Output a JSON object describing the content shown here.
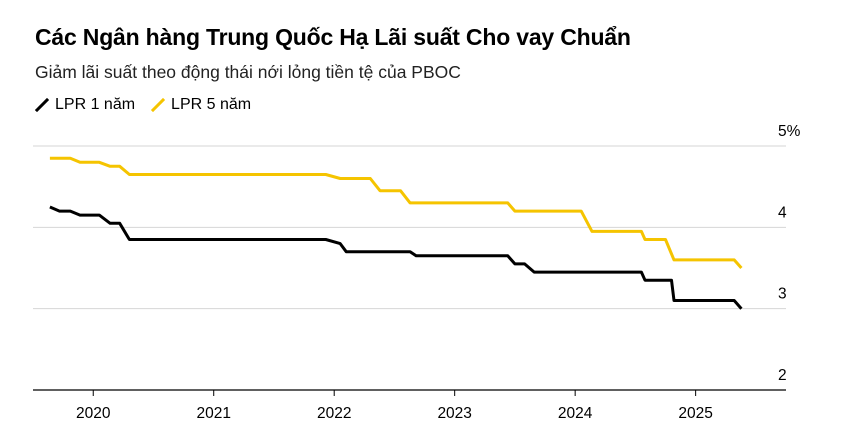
{
  "header": {
    "title": "Các Ngân hàng Trung Quốc Hạ Lãi suất Cho vay Chuẩn",
    "subtitle": "Giảm lãi suất theo động thái nới lỏng tiền tệ của PBOC"
  },
  "legend": {
    "items": [
      {
        "label": "LPR 1 năm",
        "color": "#000000"
      },
      {
        "label": "LPR 5 năm",
        "color": "#f5c400"
      }
    ]
  },
  "chart_data": {
    "type": "line",
    "title": "Các Ngân hàng Trung Quốc Hạ Lãi suất Cho vay Chuẩn",
    "subtitle": "Giảm lãi suất theo động thái nới lỏng tiền tệ của PBOC",
    "xlabel": "",
    "ylabel": "",
    "xlim": [
      2019.5,
      2025.75
    ],
    "ylim": [
      2,
      5
    ],
    "y_ticks": [
      5,
      4,
      3,
      2
    ],
    "y_tick_labels": [
      "5%",
      "4",
      "3",
      "2"
    ],
    "x_ticks": [
      2020,
      2021,
      2022,
      2023,
      2024,
      2025
    ],
    "x_tick_labels": [
      "2020",
      "2021",
      "2022",
      "2023",
      "2024",
      "2025"
    ],
    "series": [
      {
        "name": "LPR 1 năm",
        "color": "#000000",
        "points": [
          [
            2019.64,
            4.25
          ],
          [
            2019.72,
            4.2
          ],
          [
            2019.81,
            4.2
          ],
          [
            2019.89,
            4.15
          ],
          [
            2020.05,
            4.15
          ],
          [
            2020.14,
            4.05
          ],
          [
            2020.22,
            4.05
          ],
          [
            2020.3,
            3.85
          ],
          [
            2021.93,
            3.85
          ],
          [
            2022.05,
            3.8
          ],
          [
            2022.1,
            3.7
          ],
          [
            2022.63,
            3.7
          ],
          [
            2022.68,
            3.65
          ],
          [
            2023.44,
            3.65
          ],
          [
            2023.5,
            3.55
          ],
          [
            2023.58,
            3.55
          ],
          [
            2023.66,
            3.45
          ],
          [
            2024.55,
            3.45
          ],
          [
            2024.58,
            3.35
          ],
          [
            2024.8,
            3.35
          ],
          [
            2024.82,
            3.1
          ],
          [
            2025.32,
            3.1
          ],
          [
            2025.38,
            3.0
          ]
        ]
      },
      {
        "name": "LPR 5 năm",
        "color": "#f5c400",
        "points": [
          [
            2019.64,
            4.85
          ],
          [
            2019.81,
            4.85
          ],
          [
            2019.89,
            4.8
          ],
          [
            2020.05,
            4.8
          ],
          [
            2020.14,
            4.75
          ],
          [
            2020.22,
            4.75
          ],
          [
            2020.3,
            4.65
          ],
          [
            2021.93,
            4.65
          ],
          [
            2022.05,
            4.6
          ],
          [
            2022.3,
            4.6
          ],
          [
            2022.38,
            4.45
          ],
          [
            2022.55,
            4.45
          ],
          [
            2022.63,
            4.3
          ],
          [
            2023.44,
            4.3
          ],
          [
            2023.5,
            4.2
          ],
          [
            2024.05,
            4.2
          ],
          [
            2024.14,
            3.95
          ],
          [
            2024.55,
            3.95
          ],
          [
            2024.58,
            3.85
          ],
          [
            2024.75,
            3.85
          ],
          [
            2024.82,
            3.6
          ],
          [
            2025.32,
            3.6
          ],
          [
            2025.38,
            3.5
          ]
        ]
      }
    ]
  }
}
